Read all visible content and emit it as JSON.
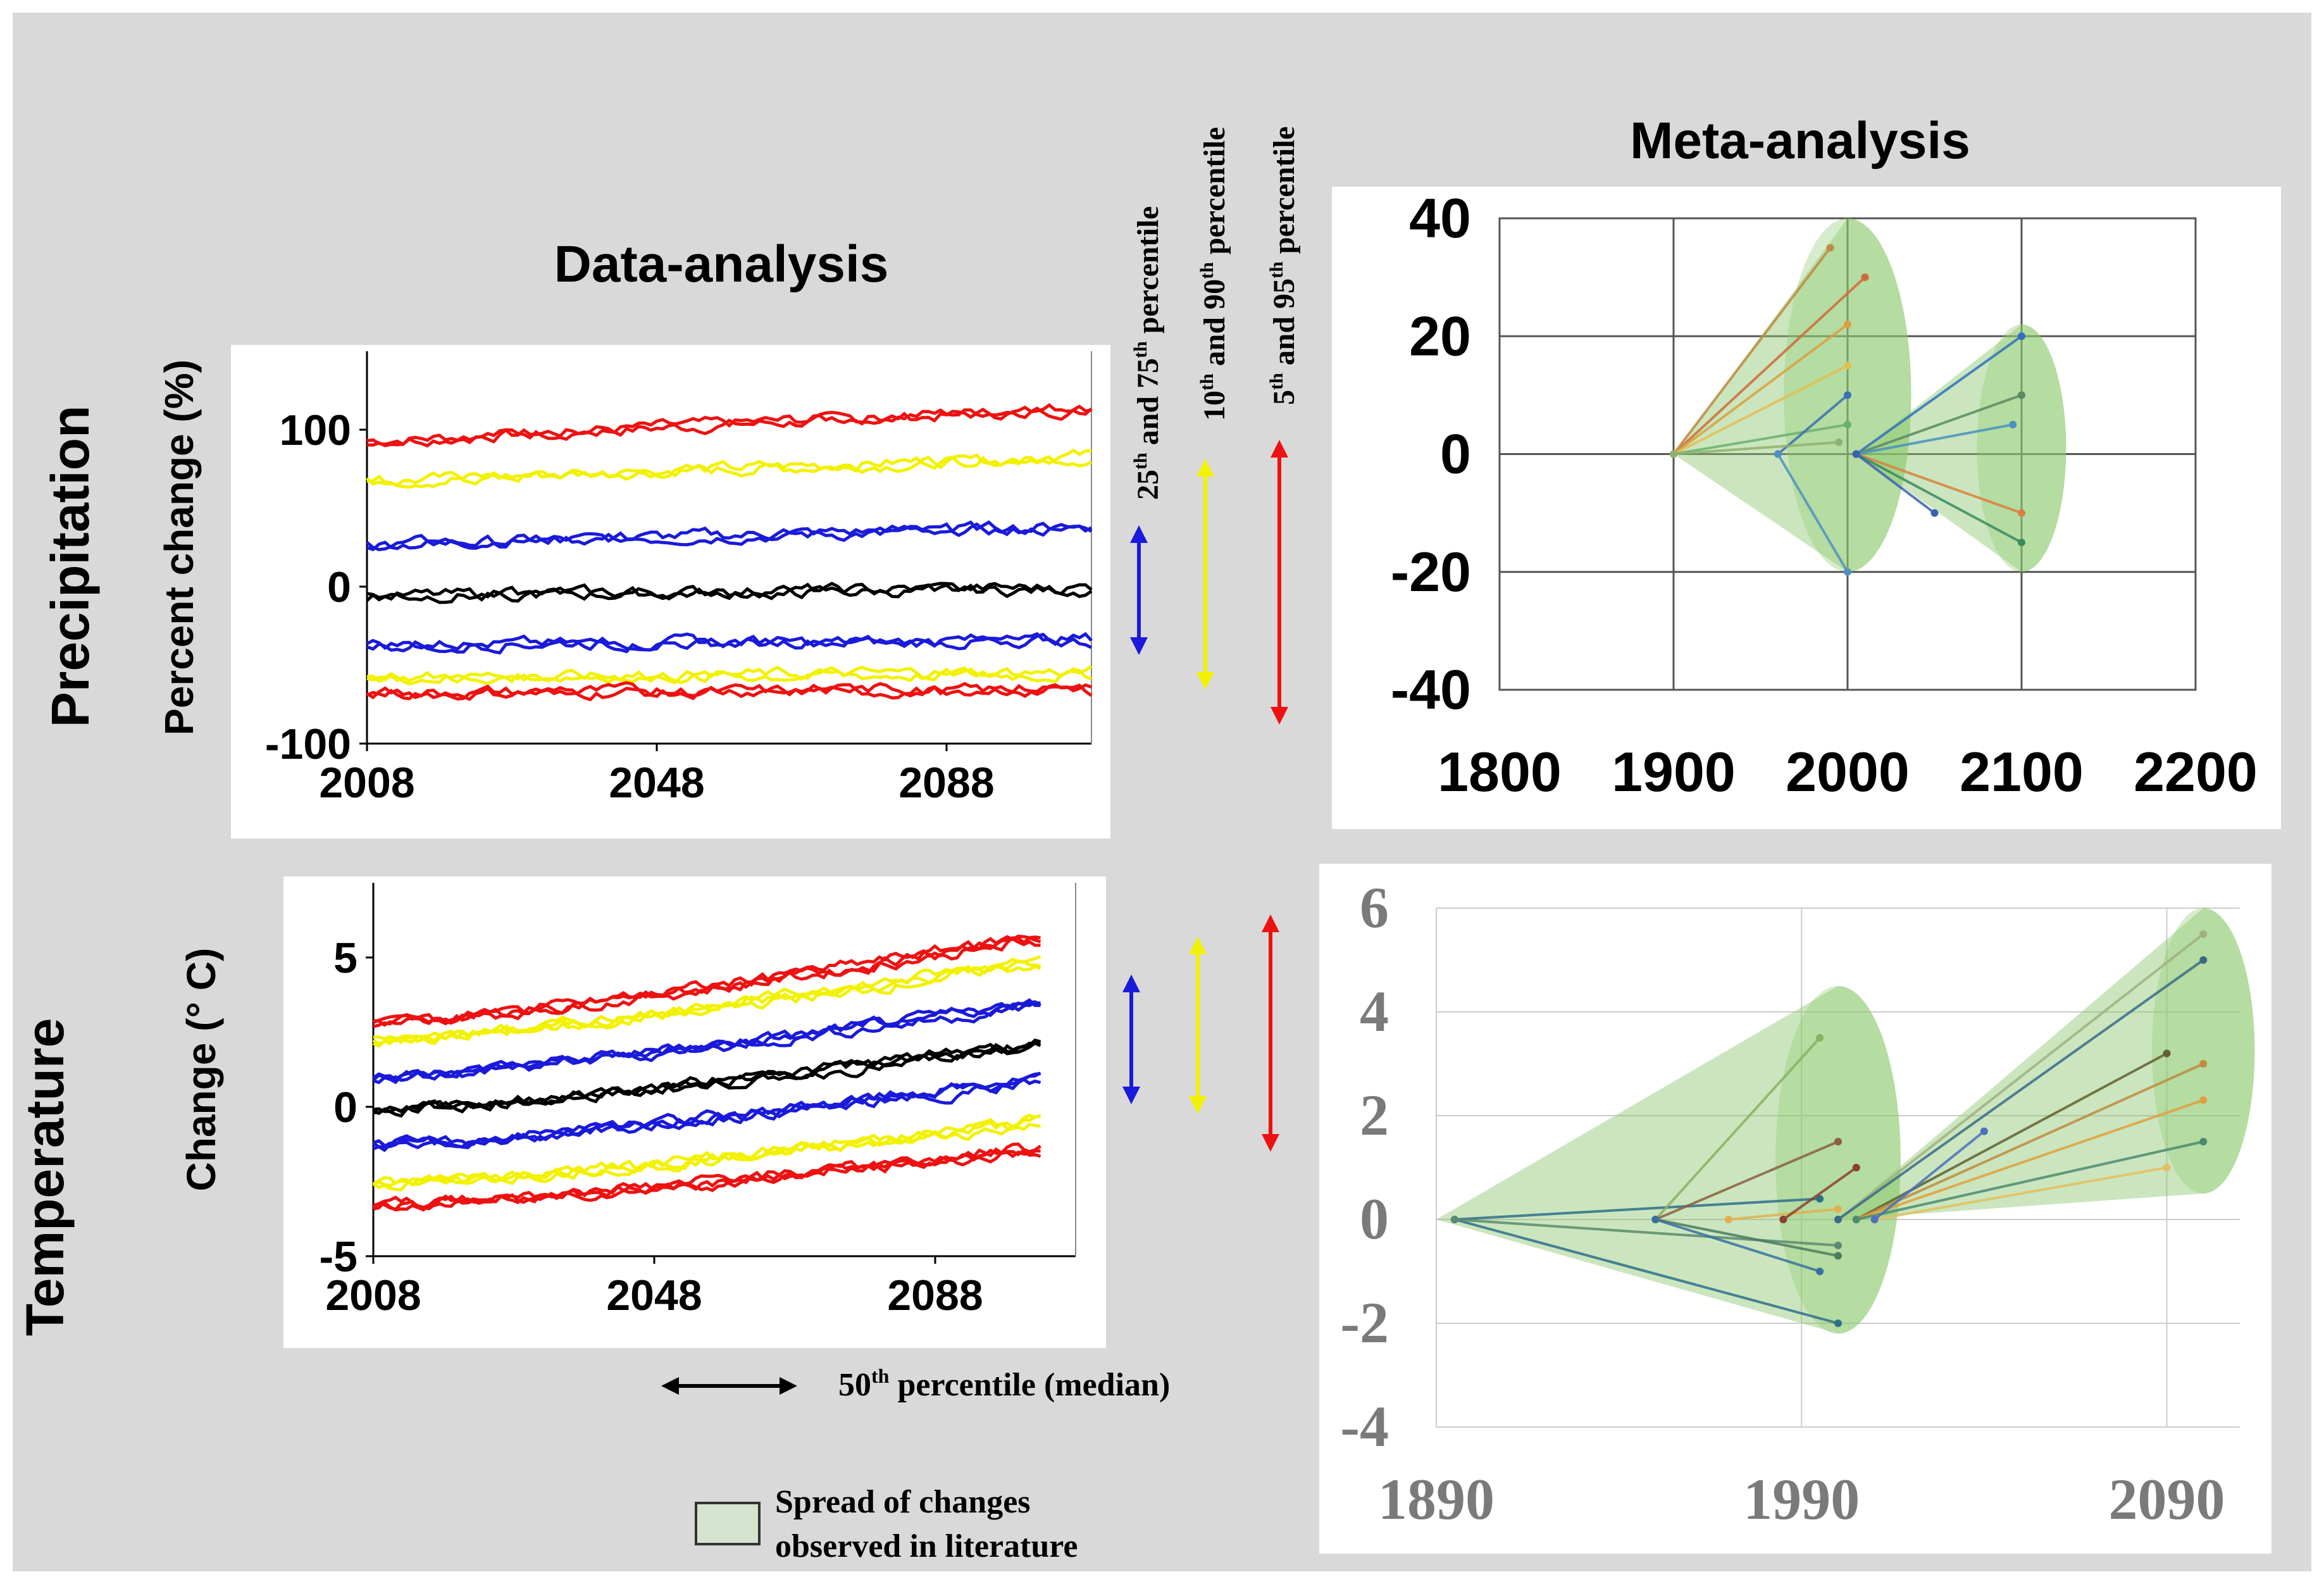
{
  "colors": {
    "background": "#d9d9d9",
    "panel": "#ffffff",
    "red": "#ee1111",
    "yellow": "#f2f200",
    "blue": "#1a1adb",
    "black": "#000000",
    "cone_fill": "#8cc86e",
    "legend_swatch": "#d5e3cf"
  },
  "headings": {
    "data_analysis": "Data-analysis",
    "meta_analysis": "Meta-analysis",
    "precipitation": "Precipitation",
    "temperature": "Temperature"
  },
  "legend": {
    "p25_75_prefix": "25",
    "p25_75_mid": " and 75",
    "p25_75_suffix": " percentile",
    "p10_90_prefix": "10",
    "p10_90_mid": " and 90",
    "p10_90_suffix": " percentile",
    "p5_95_prefix": "5",
    "p5_95_mid": " and 95",
    "p5_95_suffix": " percentile",
    "th": "th",
    "median_prefix": "50",
    "median_suffix": " percentile (median)",
    "spread_line1": "Spread of changes",
    "spread_line2": "observed in literature"
  },
  "chart_data": [
    {
      "id": "precip-data",
      "type": "line",
      "ylabel": "Percent change (%)",
      "x_ticks": [
        "2008",
        "2048",
        "2088"
      ],
      "y_ticks": [
        "100",
        "0",
        "-100"
      ],
      "xlim": [
        2008,
        2108
      ],
      "ylim": [
        -100,
        150
      ],
      "series": [
        {
          "color": "red",
          "values_start_end": [
            93,
            113
          ]
        },
        {
          "color": "yellow",
          "values_start_end": [
            67,
            82
          ]
        },
        {
          "color": "blue",
          "values_start_end": [
            27,
            37
          ]
        },
        {
          "color": "black",
          "values_start_end": [
            -6,
            -2
          ]
        },
        {
          "color": "blue",
          "values_start_end": [
            -37,
            -35
          ]
        },
        {
          "color": "yellow",
          "values_start_end": [
            -58,
            -56
          ]
        },
        {
          "color": "red",
          "values_start_end": [
            -68,
            -66
          ]
        }
      ]
    },
    {
      "id": "temp-data",
      "type": "line",
      "ylabel": "Change (° C)",
      "x_ticks": [
        "2008",
        "2048",
        "2088"
      ],
      "y_ticks": [
        "5",
        "0",
        "-5"
      ],
      "xlim": [
        2008,
        2108
      ],
      "ylim": [
        -5,
        7.5
      ],
      "series": [
        {
          "color": "red",
          "values_start_end": [
            2.8,
            5.6
          ]
        },
        {
          "color": "yellow",
          "values_start_end": [
            2.2,
            4.8
          ]
        },
        {
          "color": "blue",
          "values_start_end": [
            1.0,
            3.4
          ]
        },
        {
          "color": "black",
          "values_start_end": [
            -0.1,
            2.0
          ]
        },
        {
          "color": "blue",
          "values_start_end": [
            -1.3,
            0.8
          ]
        },
        {
          "color": "yellow",
          "values_start_end": [
            -2.6,
            -0.6
          ]
        },
        {
          "color": "red",
          "values_start_end": [
            -3.3,
            -1.5
          ]
        }
      ]
    },
    {
      "id": "precip-meta",
      "type": "line",
      "x_ticks": [
        "1800",
        "1900",
        "2000",
        "2100",
        "2200"
      ],
      "y_ticks": [
        "40",
        "20",
        "0",
        "-20",
        "-40"
      ],
      "xlim": [
        1800,
        2200
      ],
      "ylim": [
        -40,
        40
      ],
      "grid": true,
      "cones": [
        {
          "apex": [
            1900,
            0
          ],
          "end_x": 2000,
          "y_range": [
            -20,
            40
          ]
        },
        {
          "apex": [
            2005,
            0
          ],
          "end_x": 2100,
          "y_range": [
            -20,
            22
          ]
        }
      ],
      "segments": [
        {
          "from": [
            1900,
            0
          ],
          "to": [
            2010,
            30
          ],
          "color": "#d06a3a"
        },
        {
          "from": [
            1900,
            0
          ],
          "to": [
            1990,
            35
          ],
          "color": "#c08a40"
        },
        {
          "from": [
            1900,
            0
          ],
          "to": [
            2000,
            22
          ],
          "color": "#d8a040"
        },
        {
          "from": [
            1900,
            0
          ],
          "to": [
            2000,
            15
          ],
          "color": "#e0c050"
        },
        {
          "from": [
            1900,
            0
          ],
          "to": [
            2000,
            5
          ],
          "color": "#6ab070"
        },
        {
          "from": [
            1960,
            0
          ],
          "to": [
            2000,
            10
          ],
          "color": "#3a70b0"
        },
        {
          "from": [
            1960,
            0
          ],
          "to": [
            2000,
            -20
          ],
          "color": "#5090c0"
        },
        {
          "from": [
            1900,
            0
          ],
          "to": [
            1995,
            2
          ],
          "color": "#90b070"
        },
        {
          "from": [
            2005,
            0
          ],
          "to": [
            2100,
            20
          ],
          "color": "#3070c0"
        },
        {
          "from": [
            2005,
            0
          ],
          "to": [
            2100,
            10
          ],
          "color": "#5a8a60"
        },
        {
          "from": [
            2005,
            0
          ],
          "to": [
            2095,
            5
          ],
          "color": "#4a90c0"
        },
        {
          "from": [
            2005,
            0
          ],
          "to": [
            2100,
            -10
          ],
          "color": "#d88040"
        },
        {
          "from": [
            2005,
            0
          ],
          "to": [
            2100,
            -15
          ],
          "color": "#3a8a60"
        },
        {
          "from": [
            2005,
            0
          ],
          "to": [
            2050,
            -10
          ],
          "color": "#3a60b0"
        }
      ]
    },
    {
      "id": "temp-meta",
      "type": "line",
      "x_ticks": [
        "1890",
        "1990",
        "2090"
      ],
      "y_ticks": [
        "6",
        "4",
        "2",
        "0",
        "-2",
        "-4"
      ],
      "xlim": [
        1890,
        2110
      ],
      "ylim": [
        -4,
        6
      ],
      "grid": true,
      "cones": [
        {
          "apex": [
            1890,
            0
          ],
          "end_x": 2000,
          "y_range": [
            -2.2,
            4.5
          ]
        },
        {
          "apex": [
            2000,
            0
          ],
          "end_x": 2100,
          "y_range": [
            0.5,
            6
          ]
        }
      ],
      "segments": [
        {
          "from": [
            1895,
            0
          ],
          "to": [
            1995,
            0.4
          ],
          "color": "#2e6e8a"
        },
        {
          "from": [
            1895,
            0
          ],
          "to": [
            2000,
            -2
          ],
          "color": "#2e6e8a"
        },
        {
          "from": [
            1895,
            0
          ],
          "to": [
            2000,
            -0.5
          ],
          "color": "#5a8a70"
        },
        {
          "from": [
            1950,
            0
          ],
          "to": [
            1995,
            3.5
          ],
          "color": "#8ab060"
        },
        {
          "from": [
            1950,
            0
          ],
          "to": [
            2000,
            1.5
          ],
          "color": "#8a6040"
        },
        {
          "from": [
            1950,
            0
          ],
          "to": [
            2000,
            -0.7
          ],
          "color": "#4a7a60"
        },
        {
          "from": [
            1950,
            0
          ],
          "to": [
            1995,
            -1
          ],
          "color": "#3a70a0"
        },
        {
          "from": [
            1970,
            0
          ],
          "to": [
            2000,
            0.2
          ],
          "color": "#e0b050"
        },
        {
          "from": [
            1985,
            0
          ],
          "to": [
            2005,
            1
          ],
          "color": "#8a4030"
        },
        {
          "from": [
            2000,
            0
          ],
          "to": [
            2100,
            5.5
          ],
          "color": "#a0b080"
        },
        {
          "from": [
            2000,
            0
          ],
          "to": [
            2100,
            5
          ],
          "color": "#3a6a8a"
        },
        {
          "from": [
            2005,
            0
          ],
          "to": [
            2090,
            3.2
          ],
          "color": "#606030"
        },
        {
          "from": [
            2005,
            0
          ],
          "to": [
            2100,
            3
          ],
          "color": "#c08a40"
        },
        {
          "from": [
            2005,
            0
          ],
          "to": [
            2100,
            2.3
          ],
          "color": "#e0a040"
        },
        {
          "from": [
            2005,
            0
          ],
          "to": [
            2100,
            1.5
          ],
          "color": "#4a8a70"
        },
        {
          "from": [
            2010,
            0
          ],
          "to": [
            2090,
            1
          ],
          "color": "#e0c060"
        },
        {
          "from": [
            2010,
            0
          ],
          "to": [
            2040,
            1.7
          ],
          "color": "#4a70c0"
        }
      ]
    }
  ]
}
